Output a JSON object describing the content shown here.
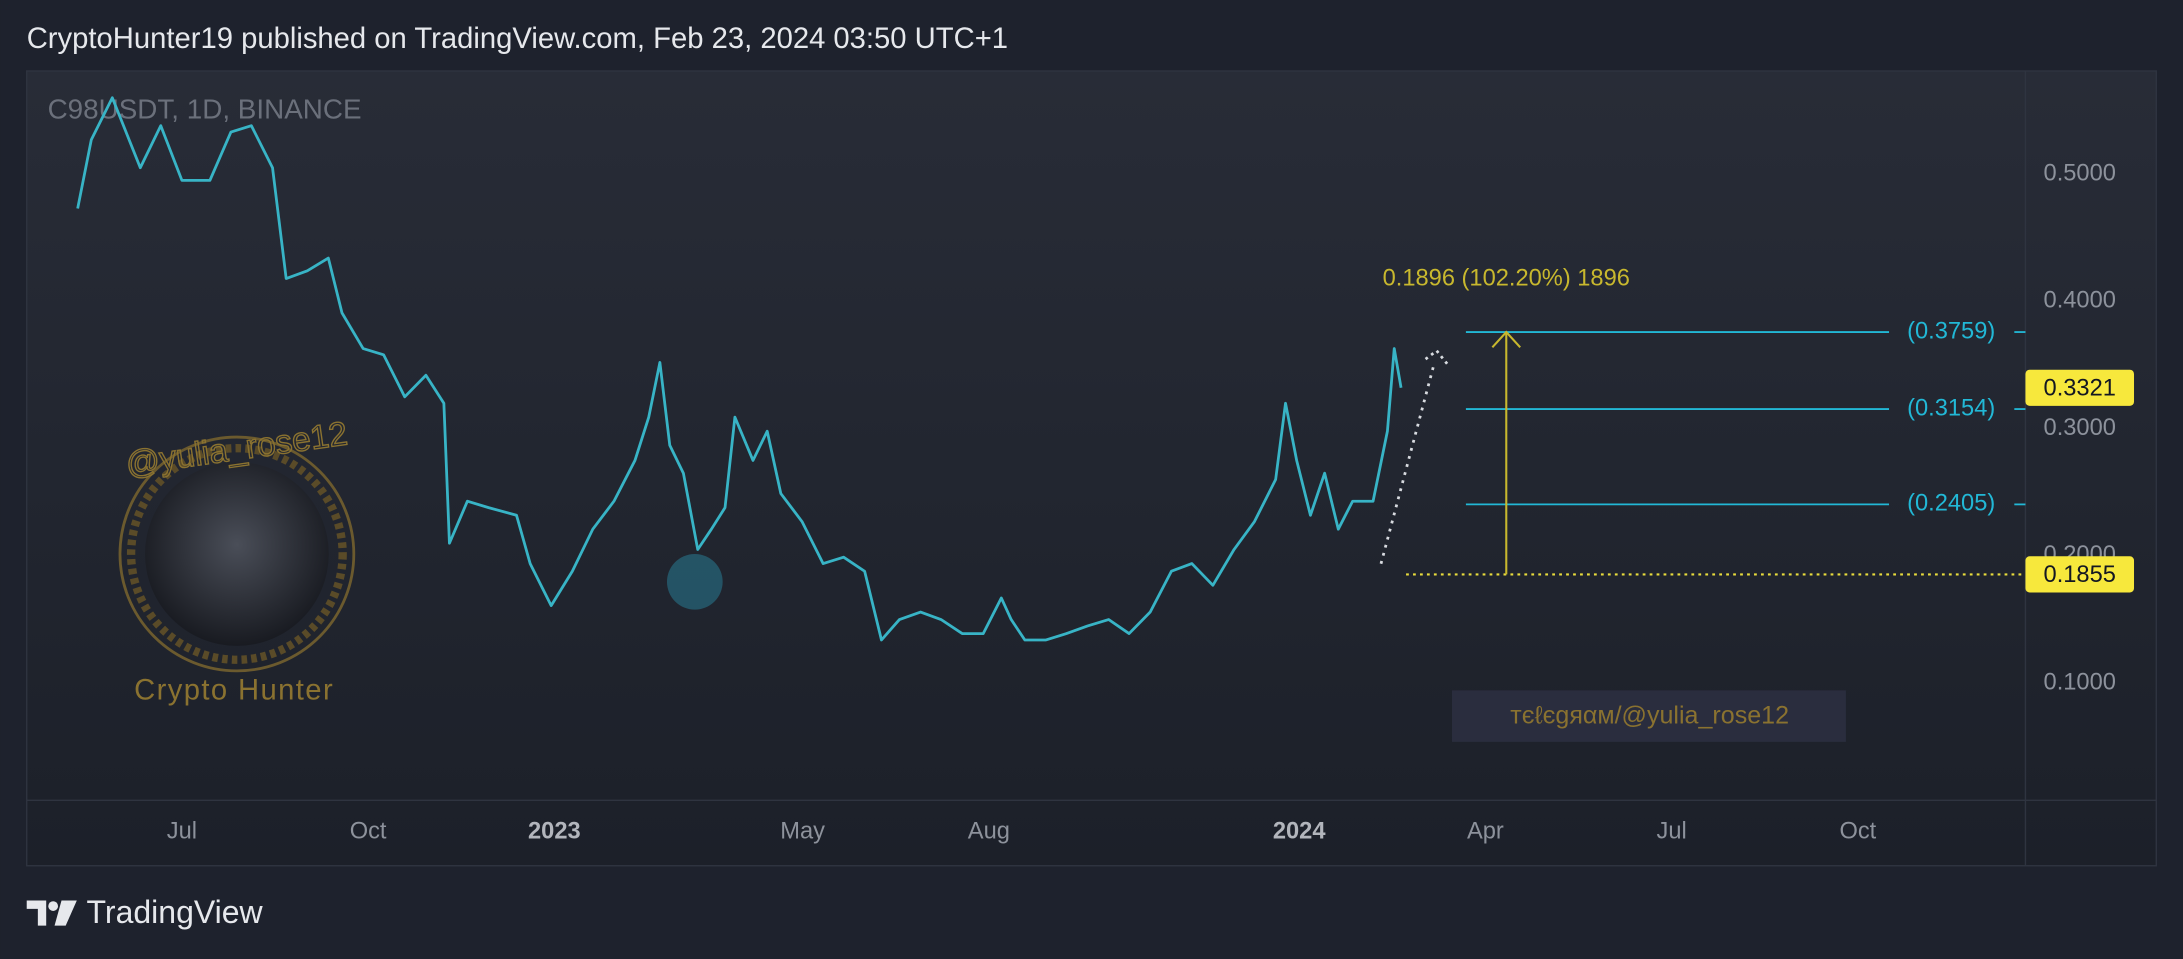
{
  "header": {
    "text": "CryptoHunter19 published on TradingView.com, Feb 23, 2024 03:50 UTC+1"
  },
  "chart_data": {
    "type": "line",
    "symbol": "C98USDT, 1D, BINANCE",
    "color": "#38b4c6",
    "x": [
      -1.68,
      -1.46,
      -1.12,
      -0.67,
      -0.34,
      0,
      0.45,
      0.79,
      1.12,
      1.46,
      1.68,
      2.02,
      2.36,
      2.58,
      2.92,
      3.25,
      3.59,
      3.93,
      4.22,
      4.31,
      4.6,
      4.94,
      5.39,
      5.61,
      5.95,
      6.29,
      6.62,
      6.96,
      7.3,
      7.52,
      7.7,
      7.86,
      8.08,
      8.31,
      8.53,
      8.75,
      8.91,
      9.2,
      9.43,
      9.65,
      9.99,
      10.33,
      10.66,
      11.0,
      11.27,
      11.56,
      11.9,
      12.23,
      12.57,
      12.91,
      13.2,
      13.36,
      13.58,
      13.92,
      14.25,
      14.59,
      14.93,
      15.26,
      15.6,
      15.94,
      16.27,
      16.61,
      16.95,
      17.28,
      17.62,
      17.78,
      17.96,
      18.18,
      18.41,
      18.63,
      18.86,
      19.19,
      19.42,
      19.53,
      19.64
    ],
    "values": [
      0.473,
      0.527,
      0.56,
      0.505,
      0.538,
      0.495,
      0.495,
      0.533,
      0.538,
      0.505,
      0.418,
      0.424,
      0.434,
      0.391,
      0.363,
      0.358,
      0.325,
      0.342,
      0.32,
      0.21,
      0.243,
      0.238,
      0.232,
      0.194,
      0.161,
      0.188,
      0.221,
      0.243,
      0.275,
      0.309,
      0.352,
      0.287,
      0.265,
      0.205,
      0.221,
      0.238,
      0.309,
      0.275,
      0.298,
      0.249,
      0.227,
      0.194,
      0.199,
      0.188,
      0.134,
      0.15,
      0.156,
      0.15,
      0.139,
      0.139,
      0.167,
      0.15,
      0.134,
      0.134,
      0.139,
      0.145,
      0.15,
      0.139,
      0.156,
      0.188,
      0.194,
      0.177,
      0.205,
      0.227,
      0.26,
      0.32,
      0.275,
      0.232,
      0.265,
      0.221,
      0.243,
      0.243,
      0.298,
      0.363,
      0.3321
    ],
    "xlim": [
      -2.5,
      29.7
    ],
    "ylim": [
      0.008,
      0.581
    ],
    "xticks": [
      {
        "value": 0,
        "label": "Jul"
      },
      {
        "value": 3,
        "label": "Oct"
      },
      {
        "value": 6,
        "label": "2023"
      },
      {
        "value": 10,
        "label": "May"
      },
      {
        "value": 13,
        "label": "Aug"
      },
      {
        "value": 18,
        "label": "2024"
      },
      {
        "value": 21,
        "label": "Apr"
      },
      {
        "value": 24,
        "label": "Jul"
      },
      {
        "value": 27,
        "label": "Oct"
      }
    ],
    "yticks": [
      {
        "value": 0.5,
        "label": "0.5000"
      },
      {
        "value": 0.4,
        "label": "0.4000"
      },
      {
        "value": 0.3,
        "label": "0.3000"
      },
      {
        "value": 0.2,
        "label": "0.2000"
      },
      {
        "value": 0.1,
        "label": "0.1000"
      }
    ],
    "levels": [
      {
        "value": 0.3759,
        "label": "(0.3759)"
      },
      {
        "value": 0.3154,
        "label": "(0.3154)"
      },
      {
        "value": 0.2405,
        "label": "(0.2405)"
      }
    ],
    "level_color": "#22b8d6",
    "last_price": 0.3321,
    "price_line": 0.1855,
    "measure_label": "0.1896 (102.20%) 1896",
    "measure_color": "#c8b82e"
  },
  "watermark": {
    "handle": "@yulia_rose12",
    "name": "Crypto Hunter",
    "telegram": "тєℓєgяαм/@yulia_rose12"
  },
  "footer": {
    "brand": "TradingView"
  }
}
